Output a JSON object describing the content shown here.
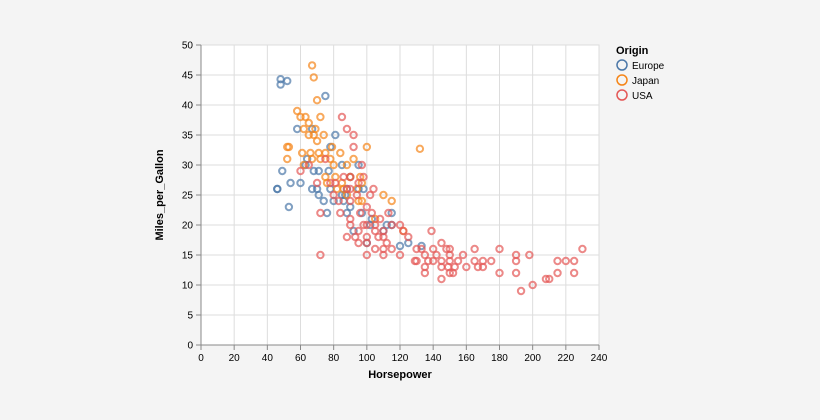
{
  "chart_data": {
    "type": "scatter",
    "xlabel": "Horsepower",
    "ylabel": "Miles_per_Gallon",
    "xlim": [
      0,
      240
    ],
    "ylim": [
      0,
      50
    ],
    "xticks": [
      0,
      20,
      40,
      60,
      80,
      100,
      120,
      140,
      160,
      180,
      200,
      220,
      240
    ],
    "yticks": [
      0,
      5,
      10,
      15,
      20,
      25,
      30,
      35,
      40,
      45,
      50
    ],
    "grid": true,
    "legend": {
      "title": "Origin",
      "placement": "right"
    },
    "series": [
      {
        "name": "Europe",
        "color": "#4c78a8",
        "points": [
          [
            46,
            26
          ],
          [
            46,
            26
          ],
          [
            48,
            44.3
          ],
          [
            48,
            43.4
          ],
          [
            49,
            29
          ],
          [
            52,
            44
          ],
          [
            53,
            23
          ],
          [
            54,
            27
          ],
          [
            58,
            36
          ],
          [
            60,
            27
          ],
          [
            63,
            30
          ],
          [
            64,
            31
          ],
          [
            67,
            26
          ],
          [
            67,
            36
          ],
          [
            68,
            29
          ],
          [
            70,
            26
          ],
          [
            71,
            29
          ],
          [
            71,
            25
          ],
          [
            74,
            24
          ],
          [
            75,
            41.5
          ],
          [
            76,
            22
          ],
          [
            77,
            29
          ],
          [
            78,
            33
          ],
          [
            78,
            26
          ],
          [
            80,
            24
          ],
          [
            81,
            35
          ],
          [
            85,
            25
          ],
          [
            86,
            24
          ],
          [
            87,
            25
          ],
          [
            88,
            26
          ],
          [
            88,
            22
          ],
          [
            90,
            28
          ],
          [
            90,
            23
          ],
          [
            92,
            19
          ],
          [
            95,
            30
          ],
          [
            95,
            26
          ],
          [
            97,
            22
          ],
          [
            98,
            26
          ],
          [
            100,
            17
          ],
          [
            102,
            20
          ],
          [
            103,
            21
          ],
          [
            110,
            19
          ],
          [
            112,
            20
          ],
          [
            115,
            20
          ],
          [
            115,
            22
          ],
          [
            120,
            16.5
          ],
          [
            125,
            17
          ],
          [
            133,
            16.5
          ],
          [
            85,
            30
          ]
        ]
      },
      {
        "name": "Japan",
        "color": "#f58518",
        "points": [
          [
            52,
            31
          ],
          [
            52,
            33
          ],
          [
            53,
            33
          ],
          [
            58,
            39
          ],
          [
            60,
            38
          ],
          [
            61,
            32
          ],
          [
            62,
            36
          ],
          [
            63,
            38
          ],
          [
            65,
            37
          ],
          [
            65,
            35
          ],
          [
            66,
            32
          ],
          [
            67,
            46.6
          ],
          [
            68,
            44.6
          ],
          [
            68,
            35
          ],
          [
            69,
            36
          ],
          [
            70,
            40.8
          ],
          [
            70,
            34
          ],
          [
            71,
            32
          ],
          [
            72,
            31
          ],
          [
            72,
            38
          ],
          [
            74,
            35
          ],
          [
            75,
            28
          ],
          [
            75,
            32
          ],
          [
            76,
            27
          ],
          [
            78,
            31
          ],
          [
            79,
            33
          ],
          [
            80,
            30
          ],
          [
            81,
            28
          ],
          [
            82,
            26
          ],
          [
            84,
            32
          ],
          [
            85,
            27
          ],
          [
            86,
            26
          ],
          [
            88,
            30
          ],
          [
            88,
            25
          ],
          [
            90,
            28
          ],
          [
            92,
            31
          ],
          [
            94,
            26
          ],
          [
            95,
            24
          ],
          [
            96,
            28
          ],
          [
            97,
            27
          ],
          [
            97,
            24
          ],
          [
            100,
            33
          ],
          [
            105,
            21
          ],
          [
            110,
            25
          ],
          [
            115,
            24
          ],
          [
            122,
            19
          ],
          [
            132,
            32.7
          ],
          [
            67,
            31
          ],
          [
            62,
            30
          ]
        ]
      },
      {
        "name": "USA",
        "color": "#e45756",
        "points": [
          [
            60,
            29
          ],
          [
            65,
            30
          ],
          [
            70,
            27
          ],
          [
            72,
            15
          ],
          [
            72,
            22
          ],
          [
            75,
            31
          ],
          [
            78,
            27
          ],
          [
            80,
            25
          ],
          [
            81,
            27
          ],
          [
            83,
            24
          ],
          [
            84,
            22
          ],
          [
            85,
            38
          ],
          [
            86,
            28
          ],
          [
            88,
            26
          ],
          [
            88,
            18
          ],
          [
            88,
            36
          ],
          [
            90,
            26
          ],
          [
            90,
            24
          ],
          [
            90,
            20
          ],
          [
            90,
            21
          ],
          [
            90,
            28
          ],
          [
            92,
            33
          ],
          [
            92,
            35
          ],
          [
            93,
            18
          ],
          [
            94,
            25
          ],
          [
            95,
            19
          ],
          [
            95,
            27
          ],
          [
            95,
            17
          ],
          [
            96,
            22
          ],
          [
            97,
            30
          ],
          [
            98,
            20
          ],
          [
            98,
            28
          ],
          [
            100,
            18
          ],
          [
            100,
            23
          ],
          [
            100,
            17
          ],
          [
            100,
            15
          ],
          [
            100,
            20
          ],
          [
            102,
            25
          ],
          [
            103,
            22
          ],
          [
            104,
            26
          ],
          [
            105,
            20
          ],
          [
            105,
            16
          ],
          [
            105,
            19
          ],
          [
            107,
            18
          ],
          [
            108,
            21
          ],
          [
            110,
            16
          ],
          [
            110,
            19
          ],
          [
            110,
            18
          ],
          [
            110,
            15
          ],
          [
            112,
            17
          ],
          [
            113,
            22
          ],
          [
            115,
            16
          ],
          [
            115,
            20
          ],
          [
            120,
            20
          ],
          [
            120,
            15
          ],
          [
            122,
            19
          ],
          [
            125,
            18
          ],
          [
            129,
            14
          ],
          [
            130,
            14
          ],
          [
            130,
            16
          ],
          [
            133,
            16
          ],
          [
            135,
            15
          ],
          [
            135,
            13
          ],
          [
            137,
            14
          ],
          [
            139,
            19
          ],
          [
            140,
            14
          ],
          [
            140,
            16
          ],
          [
            142,
            15
          ],
          [
            145,
            17
          ],
          [
            145,
            13
          ],
          [
            145,
            14
          ],
          [
            148,
            16
          ],
          [
            149,
            13
          ],
          [
            150,
            14
          ],
          [
            150,
            16
          ],
          [
            150,
            15
          ],
          [
            152,
            12
          ],
          [
            153,
            13
          ],
          [
            155,
            14
          ],
          [
            158,
            15
          ],
          [
            160,
            13
          ],
          [
            165,
            14
          ],
          [
            165,
            16
          ],
          [
            167,
            13
          ],
          [
            170,
            13
          ],
          [
            170,
            14
          ],
          [
            175,
            14
          ],
          [
            180,
            12
          ],
          [
            180,
            16
          ],
          [
            190,
            14
          ],
          [
            190,
            15
          ],
          [
            193,
            9
          ],
          [
            198,
            15
          ],
          [
            200,
            10
          ],
          [
            208,
            11
          ],
          [
            210,
            11
          ],
          [
            215,
            12
          ],
          [
            215,
            14
          ],
          [
            220,
            14
          ],
          [
            225,
            12
          ],
          [
            225,
            14
          ],
          [
            230,
            16
          ],
          [
            135,
            12
          ],
          [
            145,
            11
          ],
          [
            150,
            12
          ],
          [
            190,
            12
          ]
        ]
      }
    ]
  }
}
